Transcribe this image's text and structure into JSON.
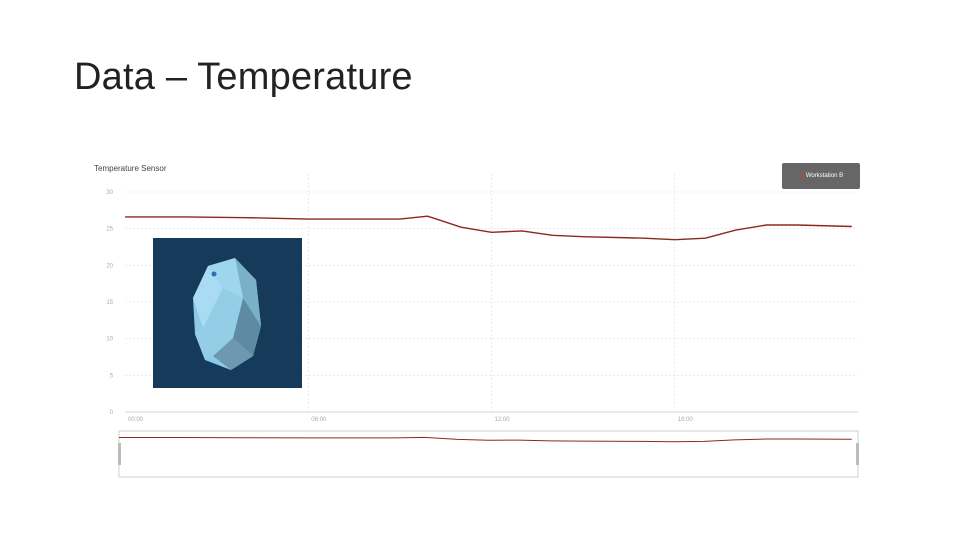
{
  "slide": {
    "title": "Data – Temperature"
  },
  "colors": {
    "line": "#8b2a1c",
    "grid": "#dddddd",
    "legend_bg": "#666666",
    "photo_bg": "#163a5a"
  },
  "chart_data": {
    "type": "line",
    "title": "Temperature Sensor",
    "xlabel": "",
    "ylabel": "",
    "ylim": [
      0,
      30
    ],
    "xlim": [
      0,
      24
    ],
    "x_ticks": [
      "00:00",
      "06:00",
      "12:00",
      "18:00"
    ],
    "y_ticks": [
      0,
      5,
      10,
      15,
      20,
      25,
      30
    ],
    "grid": true,
    "legend_position": "top-right",
    "series": [
      {
        "name": "Workstation B",
        "x": [
          0,
          2,
          4,
          6,
          8,
          9,
          9.9,
          10.2,
          11,
          12,
          13,
          14,
          15,
          17,
          18,
          19,
          20,
          21,
          22,
          23.8
        ],
        "y": [
          26.6,
          26.6,
          26.5,
          26.3,
          26.3,
          26.3,
          26.7,
          26.3,
          25.2,
          24.5,
          24.7,
          24.1,
          23.9,
          23.7,
          23.5,
          23.7,
          24.8,
          25.5,
          25.5,
          25.3
        ]
      }
    ],
    "navigator": {
      "visible": true
    }
  },
  "image": {
    "name": "sensor-beacon-photo"
  }
}
